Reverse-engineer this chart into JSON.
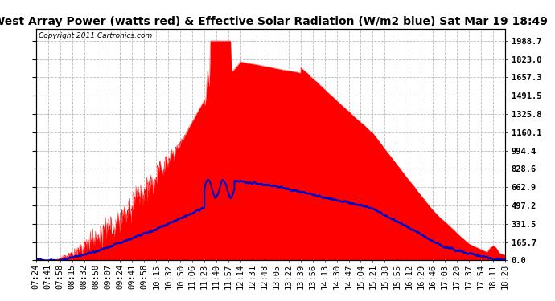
{
  "title": "West Array Power (watts red) & Effective Solar Radiation (W/m2 blue) Sat Mar 19 18:49",
  "copyright": "Copyright 2011 Cartronics.com",
  "bg_color": "#ffffff",
  "plot_bg_color": "#ffffff",
  "grid_color": "#aaaaaa",
  "ytick_labels": [
    "0.0",
    "165.7",
    "331.5",
    "497.2",
    "662.9",
    "828.6",
    "994.4",
    "1160.1",
    "1325.8",
    "1491.5",
    "1657.3",
    "1823.0",
    "1988.7"
  ],
  "ytick_values": [
    0,
    165.7,
    331.5,
    497.2,
    662.9,
    828.6,
    994.4,
    1160.1,
    1325.8,
    1491.5,
    1657.3,
    1823.0,
    1988.7
  ],
  "ymax": 2100,
  "x_tick_labels": [
    "07:24",
    "07:41",
    "07:58",
    "08:15",
    "08:32",
    "08:50",
    "09:07",
    "09:24",
    "09:41",
    "09:58",
    "10:15",
    "10:32",
    "10:50",
    "11:06",
    "11:23",
    "11:40",
    "11:57",
    "12:14",
    "12:31",
    "12:48",
    "13:05",
    "13:22",
    "13:39",
    "13:56",
    "14:13",
    "14:30",
    "14:47",
    "15:04",
    "15:21",
    "15:38",
    "15:55",
    "16:12",
    "16:29",
    "16:46",
    "17:03",
    "17:20",
    "17:37",
    "17:54",
    "18:11",
    "18:28"
  ],
  "red_color": "#ff0000",
  "blue_color": "#0000cc",
  "title_fontsize": 10,
  "tick_fontsize": 7.5
}
